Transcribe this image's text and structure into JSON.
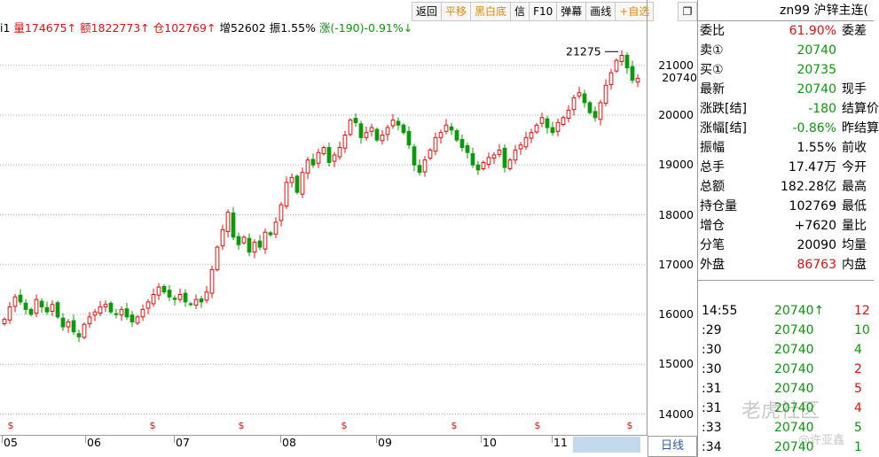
{
  "toolbar": {
    "items": [
      "返回",
      "平移",
      "黑白底",
      "信",
      "F10",
      "弹幕",
      "画线",
      "+自选"
    ],
    "window_button": "❐"
  },
  "status": {
    "prefix": "i1",
    "volume": "量174675↑",
    "amount": "额1822773↑",
    "oi": "仓102769↑",
    "increase": "增52602",
    "amplitude": "振1.55%",
    "change": "涨(-190)-0.91%↓"
  },
  "chart_data": {
    "type": "candlestick",
    "y_ticks": [
      14000,
      15000,
      16000,
      17000,
      18000,
      19000,
      20000,
      21000
    ],
    "ylim": [
      13600,
      21600
    ],
    "x_labels": [
      "05",
      "06",
      "07",
      "08",
      "09",
      "10",
      "11"
    ],
    "max_annotation": "21275",
    "last_price_label": "20740",
    "grid": true,
    "colors": {
      "up": "#e01010",
      "down": "#0a9a0a",
      "grid": "#b0b0b0"
    },
    "series": [
      {
        "name": "close",
        "values": [
          15900,
          16150,
          16350,
          16250,
          16100,
          16000,
          16300,
          16150,
          16050,
          16200,
          15950,
          15750,
          15850,
          15650,
          15550,
          15800,
          15950,
          16050,
          16150,
          16200,
          16050,
          16000,
          16100,
          15950,
          15850,
          15950,
          16100,
          16250,
          16400,
          16550,
          16450,
          16350,
          16300,
          16400,
          16250,
          16200,
          16300,
          16250,
          16450,
          16900,
          17350,
          17700,
          18050,
          17550,
          17400,
          17550,
          17250,
          17450,
          17350,
          17650,
          17600,
          17850,
          18200,
          18650,
          18750,
          18450,
          18850,
          19100,
          19000,
          19250,
          19350,
          19050,
          19200,
          19350,
          19600,
          19900,
          19850,
          19550,
          19650,
          19750,
          19500,
          19600,
          19750,
          19900,
          19800,
          19650,
          19400,
          19000,
          18850,
          19100,
          19300,
          19550,
          19650,
          19800,
          19700,
          19500,
          19350,
          19250,
          19000,
          18900,
          19050,
          19150,
          19200,
          19300,
          18950,
          19100,
          19300,
          19400,
          19550,
          19650,
          19800,
          19950,
          19750,
          19650,
          19850,
          19950,
          20100,
          20350,
          20450,
          20250,
          20050,
          19950,
          20250,
          20600,
          20850,
          21100,
          21200,
          20950,
          20700,
          20740
        ]
      }
    ]
  },
  "watermark": {
    "text1": "老虎社区",
    "text2": "@许亚鑫"
  },
  "panel": {
    "title": "zn99 沪锌主连(",
    "rows": [
      {
        "l": "委比",
        "v": "61.90%",
        "vc": "red",
        "r": "委差"
      },
      {
        "l": "卖①",
        "v": "20740",
        "vc": "green",
        "r": ""
      },
      {
        "l": "买①",
        "v": "20735",
        "vc": "green",
        "r": ""
      },
      {
        "l": "最新",
        "v": "20740",
        "vc": "green",
        "r": "现手"
      },
      {
        "l": "涨跌[结]",
        "v": "-180",
        "vc": "green",
        "r": "结算价"
      },
      {
        "l": "涨幅[结]",
        "v": "-0.86%",
        "vc": "green",
        "r": "昨结算"
      },
      {
        "l": "振幅",
        "v": "1.55%",
        "vc": "dark",
        "r": "前收"
      },
      {
        "l": "总手",
        "v": "17.47万",
        "vc": "dark",
        "r": "今开"
      },
      {
        "l": "总额",
        "v": "182.28亿",
        "vc": "dark",
        "r": "最高"
      },
      {
        "l": "持仓量",
        "v": "102769",
        "vc": "dark",
        "r": "最低"
      },
      {
        "l": "增仓",
        "v": "+7620",
        "vc": "dark",
        "r": "量比"
      },
      {
        "l": "分笔",
        "v": "20090",
        "vc": "dark",
        "r": "均量"
      },
      {
        "l": "外盘",
        "v": "86763",
        "vc": "red",
        "r": "内盘"
      }
    ],
    "ticks": [
      {
        "t": "14:55",
        "p": "20740↑",
        "pc": "green",
        "q": "12",
        "qc": "red"
      },
      {
        "t": ":29",
        "p": "20740",
        "pc": "green",
        "q": "10",
        "qc": "green"
      },
      {
        "t": ":30",
        "p": "20740",
        "pc": "green",
        "q": "4",
        "qc": "green"
      },
      {
        "t": ":30",
        "p": "20740",
        "pc": "green",
        "q": "2",
        "qc": "red"
      },
      {
        "t": ":31",
        "p": "20740",
        "pc": "green",
        "q": "5",
        "qc": "red"
      },
      {
        "t": ":31",
        "p": "20740",
        "pc": "green",
        "q": "4",
        "qc": "red"
      },
      {
        "t": ":33",
        "p": "20740",
        "pc": "green",
        "q": "5",
        "qc": "green"
      },
      {
        "t": ":34",
        "p": "20740",
        "pc": "green",
        "q": "1",
        "qc": "green"
      }
    ]
  },
  "bottom_tab": "日线"
}
